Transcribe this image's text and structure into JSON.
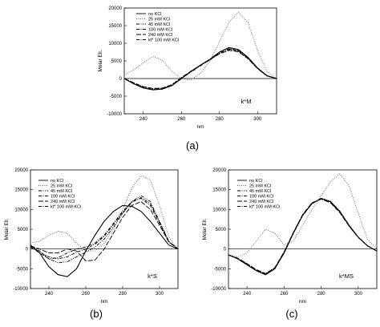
{
  "chart_data": [
    {
      "type": "line",
      "panel_label": "(a)",
      "annotation": "k*M",
      "xlabel": "nm",
      "ylabel": "Molar Ell.",
      "xlim": [
        230,
        310
      ],
      "ylim": [
        -10000,
        20000
      ],
      "xticks": [
        "240",
        "260",
        "280",
        "300"
      ],
      "yticks": [
        "-10000",
        "-5000",
        "0",
        "5000",
        "10000",
        "15000",
        "20000"
      ],
      "legend": "top-left",
      "grid": false,
      "x": [
        230,
        235,
        240,
        245,
        250,
        255,
        260,
        265,
        270,
        275,
        280,
        285,
        290,
        295,
        300,
        305,
        310
      ],
      "series": [
        {
          "name": "no KCl",
          "style": "solid",
          "values": [
            0,
            -1500,
            -2700,
            -3200,
            -3000,
            -2000,
            0,
            2000,
            3800,
            5500,
            7500,
            8800,
            8200,
            6000,
            3000,
            800,
            0
          ]
        },
        {
          "name": "25 mM KCl",
          "style": "dotted",
          "values": [
            1000,
            2500,
            4500,
            6200,
            5200,
            2000,
            0,
            -400,
            1500,
            5000,
            10500,
            16000,
            18800,
            15800,
            8000,
            2000,
            0
          ]
        },
        {
          "name": "45 mM KCl",
          "style": "dashdotdot",
          "values": [
            0,
            -1400,
            -2500,
            -3000,
            -2900,
            -2000,
            0,
            1800,
            3600,
            5300,
            7200,
            8400,
            7900,
            5800,
            2900,
            800,
            0
          ]
        },
        {
          "name": "100 mM KCl",
          "style": "dashdot",
          "values": [
            0,
            -1300,
            -2400,
            -2900,
            -2800,
            -1800,
            200,
            2000,
            3700,
            5300,
            7100,
            8200,
            7700,
            5700,
            2800,
            700,
            0
          ]
        },
        {
          "name": "240 mM KCl",
          "style": "longdash",
          "values": [
            0,
            -1200,
            -2300,
            -2800,
            -2700,
            -1700,
            300,
            2100,
            3800,
            5400,
            7000,
            8000,
            7600,
            5600,
            2800,
            700,
            0
          ]
        },
        {
          "name": "kt* 100 mM KCl",
          "style": "dashdot",
          "values": [
            0,
            -1300,
            -2400,
            -2900,
            -2800,
            -1900,
            100,
            2000,
            3700,
            5400,
            7200,
            8500,
            8000,
            5900,
            2900,
            800,
            0
          ]
        }
      ]
    },
    {
      "type": "line",
      "panel_label": "(b)",
      "annotation": "k*S",
      "xlabel": "nm",
      "ylabel": "Molar Ell.",
      "xlim": [
        230,
        310
      ],
      "ylim": [
        -10000,
        20000
      ],
      "xticks": [
        "240",
        "260",
        "280",
        "300"
      ],
      "yticks": [
        "-10000",
        "-5000",
        "0",
        "5000",
        "10000",
        "15000",
        "20000"
      ],
      "legend": "top-left",
      "grid": false,
      "x": [
        230,
        235,
        240,
        245,
        250,
        255,
        260,
        265,
        270,
        275,
        280,
        285,
        290,
        295,
        300,
        305,
        310
      ],
      "series": [
        {
          "name": "no KCl",
          "style": "solid",
          "values": [
            1000,
            -1000,
            -4500,
            -6500,
            -7000,
            -5000,
            -500,
            3500,
            7000,
            9500,
            11000,
            10800,
            9500,
            7000,
            4000,
            1000,
            0
          ]
        },
        {
          "name": "25 mM KCl",
          "style": "dotted",
          "values": [
            1500,
            2000,
            3500,
            4500,
            4000,
            1500,
            -500,
            -500,
            1500,
            5000,
            10000,
            15500,
            18500,
            17500,
            11000,
            3000,
            0
          ]
        },
        {
          "name": "45 mM KCl",
          "style": "dashdotdot",
          "values": [
            800,
            -500,
            -2500,
            -3500,
            -3200,
            -2000,
            -800,
            500,
            2500,
            5500,
            9000,
            12000,
            13500,
            12000,
            7000,
            2000,
            0
          ]
        },
        {
          "name": "100 mM KCl",
          "style": "dashdot",
          "values": [
            500,
            -1000,
            -2500,
            -2200,
            -1000,
            0,
            500,
            1500,
            3500,
            6500,
            9500,
            12000,
            12800,
            11000,
            6500,
            1800,
            0
          ]
        },
        {
          "name": "240 mM KCl",
          "style": "longdash",
          "values": [
            800,
            0,
            -1000,
            -1000,
            0,
            -500,
            -3000,
            -2800,
            0,
            4000,
            8000,
            11000,
            12000,
            10000,
            6000,
            1800,
            0
          ]
        },
        {
          "name": "kt* 100 mM KCl",
          "style": "dashdot",
          "values": [
            600,
            -800,
            -2000,
            -2500,
            -2000,
            -800,
            0,
            1200,
            3200,
            6200,
            9200,
            11800,
            13000,
            11500,
            6800,
            1900,
            0
          ]
        }
      ]
    },
    {
      "type": "line",
      "panel_label": "(c)",
      "annotation": "k*MS",
      "xlabel": "nm",
      "ylabel": "Molar Ell.",
      "xlim": [
        230,
        310
      ],
      "ylim": [
        -10000,
        20000
      ],
      "xticks": [
        "240",
        "260",
        "280",
        "300"
      ],
      "yticks": [
        "-10000",
        "-5000",
        "0",
        "5000",
        "10000",
        "15000",
        "20000"
      ],
      "legend": "top-left",
      "grid": false,
      "x": [
        230,
        235,
        240,
        245,
        250,
        255,
        260,
        265,
        270,
        275,
        280,
        285,
        290,
        295,
        300,
        305,
        310
      ],
      "series": [
        {
          "name": "no KCl",
          "style": "solid",
          "values": [
            -1500,
            -2500,
            -4000,
            -5500,
            -6500,
            -5000,
            -1000,
            4000,
            8500,
            11500,
            12800,
            12000,
            9500,
            6000,
            3000,
            800,
            -500
          ]
        },
        {
          "name": "25 mM KCl",
          "style": "dotted",
          "values": [
            -1500,
            -2000,
            -1000,
            2000,
            5000,
            4000,
            1000,
            2000,
            6000,
            10000,
            13500,
            17000,
            19000,
            16000,
            9000,
            2500,
            0
          ]
        },
        {
          "name": "45 mM KCl",
          "style": "dashdotdot",
          "values": [
            -1500,
            -2400,
            -3800,
            -5300,
            -6300,
            -4800,
            -800,
            4100,
            8600,
            11600,
            12600,
            11800,
            9300,
            5900,
            2900,
            800,
            -500
          ]
        },
        {
          "name": "100 mM KCl",
          "style": "dashdot",
          "values": [
            -1500,
            -2400,
            -3900,
            -5400,
            -6400,
            -4900,
            -900,
            4000,
            8500,
            11500,
            12700,
            11900,
            9400,
            6000,
            3000,
            800,
            -500
          ]
        },
        {
          "name": "240 mM KCl",
          "style": "longdash",
          "values": [
            -1500,
            -2300,
            -3700,
            -5200,
            -6200,
            -4700,
            -700,
            4200,
            8700,
            11700,
            12600,
            11700,
            9200,
            5800,
            2900,
            800,
            -500
          ]
        },
        {
          "name": "kt* 100 mM KCl",
          "style": "dashdot",
          "values": [
            -1500,
            -2400,
            -3900,
            -5400,
            -6400,
            -4900,
            -1000,
            3900,
            8400,
            11400,
            12800,
            12100,
            9600,
            6100,
            3000,
            800,
            -500
          ]
        }
      ]
    }
  ]
}
